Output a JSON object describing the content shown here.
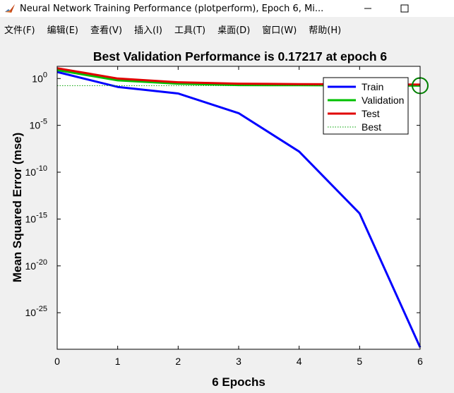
{
  "window": {
    "title": "Neural Network Training Performance (plotperform), Epoch 6, Mi...",
    "minimize_icon": "minimize-icon",
    "maximize_icon": "maximize-icon"
  },
  "menu": {
    "items": [
      "文件(F)",
      "编辑(E)",
      "查看(V)",
      "插入(I)",
      "工具(T)",
      "桌面(D)",
      "窗口(W)",
      "帮助(H)"
    ]
  },
  "chart_data": {
    "type": "line",
    "title": "Best Validation Performance is 0.17217 at epoch 6",
    "xlabel": "6 Epochs",
    "ylabel": "Mean Squared Error  (mse)",
    "yscale": "log",
    "xlim": [
      0,
      6
    ],
    "ylim_exp": [
      -28.9,
      1.3
    ],
    "x_ticks": [
      0,
      1,
      2,
      3,
      4,
      5,
      6
    ],
    "y_ticks": [
      {
        "base": "10",
        "exp": "0",
        "value": 0
      },
      {
        "base": "10",
        "exp": "-5",
        "value": -5
      },
      {
        "base": "10",
        "exp": "-10",
        "value": -10
      },
      {
        "base": "10",
        "exp": "-15",
        "value": -15
      },
      {
        "base": "10",
        "exp": "-20",
        "value": -20
      },
      {
        "base": "10",
        "exp": "-25",
        "value": -25
      }
    ],
    "x": [
      0,
      1,
      2,
      3,
      4,
      5,
      6
    ],
    "series": [
      {
        "name": "Train",
        "color": "#0000ff",
        "log10_values": [
          0.7,
          -0.9,
          -1.6,
          -3.7,
          -7.8,
          -14.4,
          -28.7
        ]
      },
      {
        "name": "Validation",
        "color": "#00c000",
        "log10_values": [
          0.9,
          -0.2,
          -0.55,
          -0.7,
          -0.72,
          -0.74,
          -0.76
        ]
      },
      {
        "name": "Test",
        "color": "#e00000",
        "log10_values": [
          1.1,
          0.0,
          -0.4,
          -0.55,
          -0.6,
          -0.62,
          -0.65
        ]
      },
      {
        "name": "Best",
        "color": "#00a000",
        "style": "dotted",
        "best_epoch": 6,
        "best_value": 0.17217
      }
    ],
    "grid": false,
    "legend_position": "top-right"
  }
}
